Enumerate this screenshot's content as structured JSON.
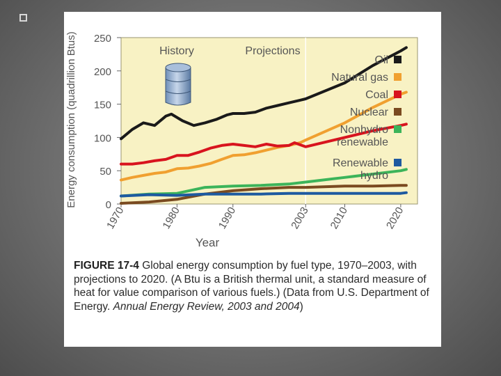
{
  "caption": {
    "label": "FIGURE 17-4",
    "text": "Global energy consumption by fuel type, 1970–2003, with projections to 2020. (A Btu is a British thermal unit, a standard measure of heat for value comparison of various fuels.) (Data from U.S. Department of Energy. ",
    "source_italic": "Annual Energy Review, 2003 and 2004",
    "close": ")"
  },
  "colors": {
    "Oil": "#1a1a1a",
    "Natural gas": "#f0a030",
    "Coal": "#d8141e",
    "Nuclear": "#7a4a20",
    "Nonhydro renewable": "#3cb45a",
    "Renewable hydro": "#1e5aa0",
    "plot_bg": "#f8f2c4",
    "axis": "#666666"
  },
  "chart_data": {
    "type": "line",
    "title": "",
    "xlabel": "Year",
    "ylabel": "Energy consumption (quadrillion Btus)",
    "xlim": [
      1970,
      2023
    ],
    "ylim": [
      0,
      250
    ],
    "x_ticks": [
      1970,
      1980,
      1990,
      2003,
      2010,
      2020
    ],
    "y_ticks": [
      0,
      50,
      100,
      150,
      200,
      250
    ],
    "annotations": [
      "History",
      "Projections"
    ],
    "projection_start": 2003,
    "series": [
      {
        "name": "Oil",
        "legend": [
          "Oil"
        ],
        "x": [
          1970,
          1972,
          1974,
          1976,
          1978,
          1979,
          1981,
          1983,
          1985,
          1987,
          1989,
          1990,
          1992,
          1994,
          1996,
          1998,
          2000,
          2002,
          2003,
          2010,
          2015,
          2020,
          2021
        ],
        "values": [
          98,
          112,
          122,
          118,
          132,
          135,
          125,
          118,
          122,
          127,
          134,
          136,
          136,
          138,
          144,
          148,
          152,
          156,
          158,
          182,
          208,
          230,
          235
        ]
      },
      {
        "name": "Natural gas",
        "legend": [
          "Natural gas"
        ],
        "x": [
          1970,
          1972,
          1974,
          1976,
          1978,
          1980,
          1982,
          1984,
          1986,
          1988,
          1990,
          1992,
          1994,
          1996,
          1998,
          2000,
          2002,
          2003,
          2010,
          2015,
          2020,
          2021
        ],
        "values": [
          36,
          40,
          43,
          46,
          48,
          53,
          54,
          57,
          61,
          67,
          73,
          74,
          77,
          81,
          85,
          88,
          92,
          96,
          122,
          145,
          165,
          168
        ]
      },
      {
        "name": "Coal",
        "legend": [
          "Coal"
        ],
        "x": [
          1970,
          1972,
          1974,
          1976,
          1978,
          1980,
          1982,
          1984,
          1986,
          1988,
          1990,
          1992,
          1994,
          1996,
          1998,
          2000,
          2001,
          2003,
          2010,
          2015,
          2020,
          2021
        ],
        "values": [
          60,
          60,
          62,
          65,
          67,
          73,
          73,
          78,
          84,
          88,
          90,
          88,
          86,
          90,
          87,
          88,
          92,
          86,
          100,
          110,
          118,
          120
        ]
      },
      {
        "name": "Nuclear",
        "legend": [
          "Nuclear"
        ],
        "x": [
          1970,
          1975,
          1980,
          1985,
          1990,
          1995,
          2000,
          2003,
          2010,
          2015,
          2020,
          2021
        ],
        "values": [
          1,
          3,
          7,
          15,
          20,
          23,
          25,
          25,
          27,
          27,
          28,
          28
        ]
      },
      {
        "name": "Nonhydro renewable",
        "legend": [
          "Nonhydro",
          "renewable"
        ],
        "x": [
          1970,
          1975,
          1980,
          1985,
          1990,
          1995,
          2000,
          2003,
          2010,
          2015,
          2020,
          2021
        ],
        "values": [
          12,
          15,
          16,
          25,
          27,
          28,
          30,
          33,
          40,
          45,
          50,
          52
        ]
      },
      {
        "name": "Renewable hydro",
        "legend": [
          "Renewable",
          "hydro"
        ],
        "x": [
          1970,
          1975,
          1980,
          1985,
          1990,
          1995,
          2000,
          2003,
          2010,
          2015,
          2020,
          2021
        ],
        "values": [
          12,
          14,
          13,
          15,
          15,
          15,
          16,
          16,
          16,
          16,
          16,
          17
        ]
      }
    ]
  }
}
